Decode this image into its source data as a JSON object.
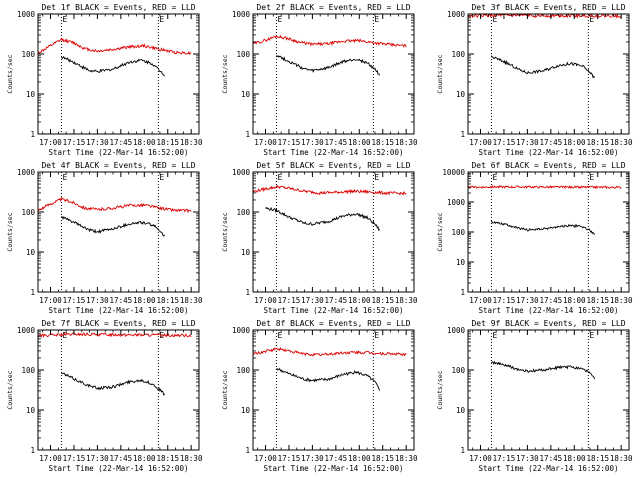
{
  "figure": {
    "y_label": "Counts/sec",
    "x_label": "Start Time (22-Mar-14 16:52:00)",
    "x_tick_labels": [
      "17:00",
      "17:15",
      "17:30",
      "17:45",
      "18:00",
      "18:15",
      "18:30"
    ],
    "y_tick_labels": [
      "1",
      "10",
      "100",
      "1000"
    ],
    "y_tick_labels_det6": [
      "1",
      "10",
      "100",
      "1000",
      "10000"
    ],
    "event_marker": "E",
    "colors": {
      "events": "#000000",
      "lld": "#dd0000",
      "background": "#ffffff"
    }
  },
  "chart_data": [
    {
      "type": "line",
      "title": "Det 1f BLACK = Events, RED = LLD",
      "ylim": [
        1,
        1000
      ],
      "y_scale": "log",
      "x_range": [
        "16:52",
        "18:35"
      ],
      "vertical_markers": [
        "17:07",
        "18:09"
      ],
      "series": [
        {
          "name": "Events",
          "color": "#000000",
          "x": [
            "17:07",
            "17:15",
            "17:25",
            "17:30",
            "17:40",
            "17:50",
            "17:58",
            "18:05",
            "18:10",
            "18:13"
          ],
          "values": [
            85,
            62,
            38,
            36,
            42,
            62,
            70,
            58,
            38,
            30
          ]
        },
        {
          "name": "LLD",
          "color": "#dd0000",
          "x": [
            "16:52",
            "17:00",
            "17:07",
            "17:15",
            "17:22",
            "17:30",
            "17:40",
            "17:50",
            "18:00",
            "18:10",
            "18:20",
            "18:30"
          ],
          "values": [
            105,
            160,
            230,
            190,
            135,
            118,
            130,
            150,
            160,
            130,
            110,
            105
          ]
        }
      ]
    },
    {
      "type": "line",
      "title": "Det 2f BLACK = Events, RED = LLD",
      "ylim": [
        1,
        1000
      ],
      "y_scale": "log",
      "x_range": [
        "16:52",
        "18:35"
      ],
      "vertical_markers": [
        "17:07",
        "18:09"
      ],
      "series": [
        {
          "name": "Events",
          "color": "#000000",
          "x": [
            "17:07",
            "17:15",
            "17:25",
            "17:30",
            "17:40",
            "17:50",
            "17:58",
            "18:05",
            "18:10",
            "18:13"
          ],
          "values": [
            95,
            65,
            42,
            38,
            45,
            65,
            75,
            60,
            42,
            30
          ]
        },
        {
          "name": "LLD",
          "color": "#dd0000",
          "x": [
            "16:52",
            "17:00",
            "17:07",
            "17:15",
            "17:22",
            "17:30",
            "17:40",
            "17:50",
            "18:00",
            "18:10",
            "18:20",
            "18:30"
          ],
          "values": [
            180,
            220,
            280,
            240,
            195,
            175,
            180,
            210,
            215,
            190,
            170,
            160
          ]
        }
      ]
    },
    {
      "type": "line",
      "title": "Det 3f BLACK = Events, RED = LLD",
      "ylim": [
        1,
        1000
      ],
      "y_scale": "log",
      "x_range": [
        "16:52",
        "18:35"
      ],
      "vertical_markers": [
        "17:07",
        "18:09"
      ],
      "series": [
        {
          "name": "Events",
          "color": "#000000",
          "x": [
            "17:07",
            "17:15",
            "17:25",
            "17:30",
            "17:40",
            "17:50",
            "17:58",
            "18:05",
            "18:10",
            "18:13"
          ],
          "values": [
            85,
            65,
            40,
            34,
            38,
            52,
            58,
            50,
            35,
            25
          ]
        },
        {
          "name": "LLD",
          "color": "#dd0000",
          "x": [
            "16:52",
            "17:15",
            "17:45",
            "18:15",
            "18:30"
          ],
          "values": [
            900,
            920,
            910,
            900,
            890
          ]
        }
      ]
    },
    {
      "type": "line",
      "title": "Det 4f BLACK = Events, RED = LLD",
      "ylim": [
        1,
        1000
      ],
      "y_scale": "log",
      "x_range": [
        "16:52",
        "18:35"
      ],
      "vertical_markers": [
        "17:07",
        "18:09"
      ],
      "series": [
        {
          "name": "Events",
          "color": "#000000",
          "x": [
            "17:07",
            "17:15",
            "17:25",
            "17:30",
            "17:40",
            "17:50",
            "17:58",
            "18:05",
            "18:10",
            "18:13"
          ],
          "values": [
            75,
            55,
            35,
            32,
            38,
            50,
            55,
            48,
            35,
            25
          ]
        },
        {
          "name": "LLD",
          "color": "#dd0000",
          "x": [
            "16:52",
            "17:00",
            "17:07",
            "17:15",
            "17:22",
            "17:30",
            "17:40",
            "17:50",
            "18:00",
            "18:10",
            "18:20",
            "18:30"
          ],
          "values": [
            110,
            160,
            210,
            170,
            125,
            115,
            125,
            145,
            150,
            125,
            110,
            108
          ]
        }
      ]
    },
    {
      "type": "line",
      "title": "Det 5f BLACK = Events, RED = LLD",
      "ylim": [
        1,
        1000
      ],
      "y_scale": "log",
      "x_range": [
        "16:52",
        "18:35"
      ],
      "vertical_markers": [
        "17:07",
        "18:09"
      ],
      "series": [
        {
          "name": "Events",
          "color": "#000000",
          "x": [
            "17:00",
            "17:07",
            "17:15",
            "17:25",
            "17:30",
            "17:40",
            "17:50",
            "17:58",
            "18:05",
            "18:10",
            "18:13"
          ],
          "values": [
            125,
            110,
            75,
            52,
            50,
            58,
            80,
            90,
            72,
            50,
            35
          ]
        },
        {
          "name": "LLD",
          "color": "#dd0000",
          "x": [
            "16:52",
            "17:00",
            "17:08",
            "17:15",
            "17:25",
            "17:35",
            "17:45",
            "17:55",
            "18:05",
            "18:15",
            "18:30"
          ],
          "values": [
            320,
            380,
            430,
            390,
            330,
            300,
            310,
            330,
            320,
            300,
            290
          ]
        }
      ]
    },
    {
      "type": "line",
      "title": "Det 6f BLACK = Events, RED = LLD",
      "ylim": [
        1,
        10000
      ],
      "y_scale": "log",
      "x_range": [
        "16:52",
        "18:35"
      ],
      "vertical_markers": [
        "17:07",
        "18:09"
      ],
      "series": [
        {
          "name": "Events",
          "color": "#000000",
          "x": [
            "17:07",
            "17:15",
            "17:25",
            "17:30",
            "17:40",
            "17:50",
            "17:58",
            "18:05",
            "18:10",
            "18:13"
          ],
          "values": [
            220,
            185,
            130,
            118,
            125,
            150,
            165,
            150,
            115,
            80
          ]
        },
        {
          "name": "LLD",
          "color": "#dd0000",
          "x": [
            "16:52",
            "17:15",
            "17:45",
            "18:15",
            "18:30"
          ],
          "values": [
            3100,
            3200,
            3150,
            3100,
            3050
          ]
        }
      ]
    },
    {
      "type": "line",
      "title": "Det 7f BLACK = Events, RED = LLD",
      "ylim": [
        1,
        1000
      ],
      "y_scale": "log",
      "x_range": [
        "16:52",
        "18:35"
      ],
      "vertical_markers": [
        "17:07",
        "18:09"
      ],
      "series": [
        {
          "name": "Events",
          "color": "#000000",
          "x": [
            "17:07",
            "17:15",
            "17:25",
            "17:30",
            "17:40",
            "17:50",
            "17:58",
            "18:05",
            "18:10",
            "18:13"
          ],
          "values": [
            85,
            60,
            40,
            35,
            38,
            50,
            56,
            45,
            32,
            24
          ]
        },
        {
          "name": "LLD",
          "color": "#dd0000",
          "x": [
            "16:52",
            "17:15",
            "17:45",
            "18:15",
            "18:30"
          ],
          "values": [
            720,
            780,
            760,
            740,
            730
          ]
        }
      ]
    },
    {
      "type": "line",
      "title": "Det 8f BLACK = Events, RED = LLD",
      "ylim": [
        1,
        1000
      ],
      "y_scale": "log",
      "x_range": [
        "16:52",
        "18:35"
      ],
      "vertical_markers": [
        "17:07",
        "18:09"
      ],
      "series": [
        {
          "name": "Events",
          "color": "#000000",
          "x": [
            "17:07",
            "17:15",
            "17:25",
            "17:30",
            "17:40",
            "17:50",
            "17:58",
            "18:05",
            "18:10",
            "18:13"
          ],
          "values": [
            110,
            80,
            58,
            55,
            58,
            78,
            88,
            72,
            50,
            32
          ]
        },
        {
          "name": "LLD",
          "color": "#dd0000",
          "x": [
            "16:52",
            "17:00",
            "17:08",
            "17:15",
            "17:25",
            "17:35",
            "17:45",
            "17:55",
            "18:05",
            "18:15",
            "18:30"
          ],
          "values": [
            250,
            290,
            340,
            300,
            250,
            240,
            260,
            275,
            270,
            255,
            245
          ]
        }
      ]
    },
    {
      "type": "line",
      "title": "Det 9f BLACK = Events, RED = LLD",
      "ylim": [
        1,
        1000
      ],
      "y_scale": "log",
      "x_range": [
        "16:52",
        "18:35"
      ],
      "vertical_markers": [
        "17:07",
        "18:09"
      ],
      "series": [
        {
          "name": "Events",
          "color": "#000000",
          "x": [
            "17:07",
            "17:15",
            "17:25",
            "17:30",
            "17:40",
            "17:50",
            "17:58",
            "18:05",
            "18:10",
            "18:13"
          ],
          "values": [
            155,
            135,
            100,
            92,
            100,
            115,
            120,
            110,
            85,
            60
          ]
        }
      ]
    }
  ]
}
